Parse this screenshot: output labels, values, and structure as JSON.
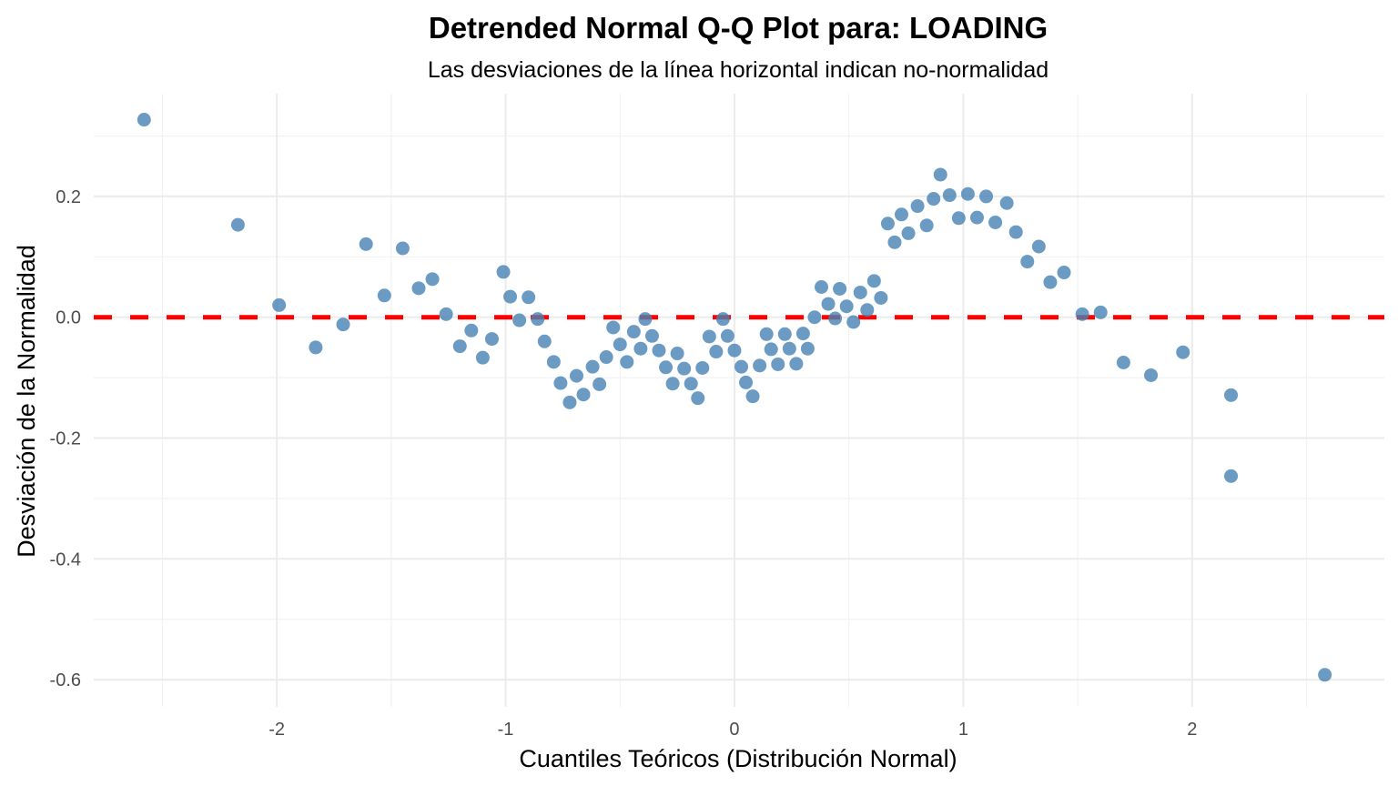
{
  "chart_data": {
    "type": "scatter",
    "title": "Detrended Normal Q-Q Plot para: LOADING",
    "subtitle": "Las desviaciones de la línea horizontal indican no-normalidad",
    "xlabel": "Cuantiles Teóricos (Distribución Normal)",
    "ylabel": "Desviación de la Normalidad",
    "xlim": [
      -2.8,
      2.84
    ],
    "ylim": [
      -0.645,
      0.37
    ],
    "x_ticks": [
      -2,
      -1,
      0,
      1,
      2
    ],
    "x_tick_labels": [
      "-2",
      "-1",
      "0",
      "1",
      "2"
    ],
    "y_ticks": [
      -0.6,
      -0.4,
      -0.2,
      0.0,
      0.2
    ],
    "y_tick_labels": [
      "-0.6",
      "-0.4",
      "-0.2",
      "0.0",
      "0.2"
    ],
    "x_minor": [
      -2.5,
      -1.5,
      -0.5,
      0.5,
      1.5,
      2.5
    ],
    "y_minor": [
      -0.5,
      -0.3,
      -0.1,
      0.1,
      0.3
    ],
    "grid": true,
    "legend": "none",
    "reference_line": {
      "y": 0,
      "style": "dashed",
      "color": "#ff0000"
    },
    "point_color": "#4682b4",
    "points": [
      [
        -2.58,
        0.327
      ],
      [
        -2.17,
        0.153
      ],
      [
        -1.99,
        0.02
      ],
      [
        -1.83,
        -0.05
      ],
      [
        -1.71,
        -0.012
      ],
      [
        -1.61,
        0.121
      ],
      [
        -1.53,
        0.036
      ],
      [
        -1.45,
        0.114
      ],
      [
        -1.38,
        0.048
      ],
      [
        -1.32,
        0.063
      ],
      [
        -1.26,
        0.005
      ],
      [
        -1.2,
        -0.048
      ],
      [
        -1.15,
        -0.022
      ],
      [
        -1.1,
        -0.067
      ],
      [
        -1.06,
        -0.036
      ],
      [
        -1.01,
        0.075
      ],
      [
        -0.98,
        0.034
      ],
      [
        -0.94,
        -0.005
      ],
      [
        -0.9,
        0.033
      ],
      [
        -0.86,
        -0.003
      ],
      [
        -0.83,
        -0.04
      ],
      [
        -0.79,
        -0.074
      ],
      [
        -0.76,
        -0.109
      ],
      [
        -0.72,
        -0.141
      ],
      [
        -0.69,
        -0.097
      ],
      [
        -0.66,
        -0.128
      ],
      [
        -0.62,
        -0.082
      ],
      [
        -0.59,
        -0.111
      ],
      [
        -0.56,
        -0.066
      ],
      [
        -0.53,
        -0.017
      ],
      [
        -0.5,
        -0.045
      ],
      [
        -0.47,
        -0.074
      ],
      [
        -0.44,
        -0.024
      ],
      [
        -0.41,
        -0.052
      ],
      [
        -0.39,
        -0.003
      ],
      [
        -0.36,
        -0.031
      ],
      [
        -0.33,
        -0.055
      ],
      [
        -0.3,
        -0.083
      ],
      [
        -0.27,
        -0.11
      ],
      [
        -0.25,
        -0.06
      ],
      [
        -0.22,
        -0.085
      ],
      [
        -0.19,
        -0.11
      ],
      [
        -0.16,
        -0.134
      ],
      [
        -0.14,
        -0.084
      ],
      [
        -0.11,
        -0.032
      ],
      [
        -0.08,
        -0.057
      ],
      [
        -0.05,
        -0.003
      ],
      [
        -0.03,
        -0.031
      ],
      [
        0.0,
        -0.055
      ],
      [
        0.03,
        -0.082
      ],
      [
        0.05,
        -0.108
      ],
      [
        0.08,
        -0.131
      ],
      [
        0.11,
        -0.08
      ],
      [
        0.14,
        -0.028
      ],
      [
        0.16,
        -0.053
      ],
      [
        0.19,
        -0.078
      ],
      [
        0.22,
        -0.028
      ],
      [
        0.24,
        -0.052
      ],
      [
        0.27,
        -0.077
      ],
      [
        0.3,
        -0.027
      ],
      [
        0.32,
        -0.052
      ],
      [
        0.35,
        0.0
      ],
      [
        0.38,
        0.05
      ],
      [
        0.41,
        0.022
      ],
      [
        0.44,
        -0.002
      ],
      [
        0.46,
        0.047
      ],
      [
        0.49,
        0.018
      ],
      [
        0.52,
        -0.008
      ],
      [
        0.55,
        0.041
      ],
      [
        0.58,
        0.012
      ],
      [
        0.61,
        0.06
      ],
      [
        0.64,
        0.032
      ],
      [
        0.67,
        0.155
      ],
      [
        0.7,
        0.124
      ],
      [
        0.73,
        0.17
      ],
      [
        0.76,
        0.139
      ],
      [
        0.8,
        0.184
      ],
      [
        0.84,
        0.152
      ],
      [
        0.87,
        0.196
      ],
      [
        0.9,
        0.236
      ],
      [
        0.94,
        0.202
      ],
      [
        0.98,
        0.164
      ],
      [
        1.02,
        0.204
      ],
      [
        1.06,
        0.165
      ],
      [
        1.1,
        0.2
      ],
      [
        1.14,
        0.157
      ],
      [
        1.19,
        0.189
      ],
      [
        1.23,
        0.141
      ],
      [
        1.28,
        0.092
      ],
      [
        1.33,
        0.117
      ],
      [
        1.38,
        0.058
      ],
      [
        1.44,
        0.074
      ],
      [
        1.52,
        0.005
      ],
      [
        1.6,
        0.008
      ],
      [
        1.7,
        -0.075
      ],
      [
        1.82,
        -0.096
      ],
      [
        1.96,
        -0.058
      ],
      [
        2.17,
        -0.129
      ],
      [
        2.17,
        -0.263
      ],
      [
        2.58,
        -0.592
      ]
    ]
  }
}
